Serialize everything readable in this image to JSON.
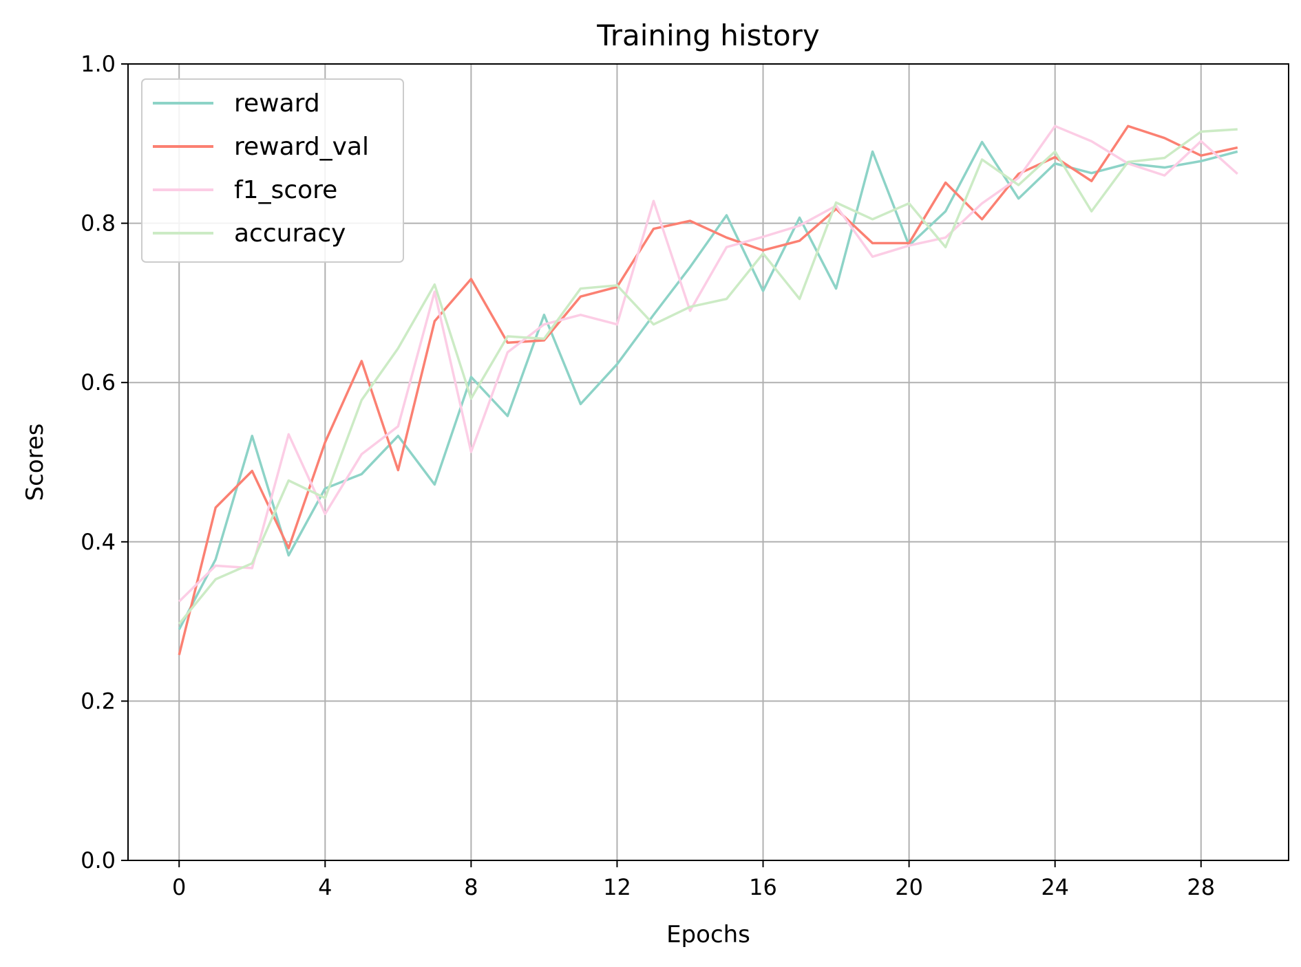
{
  "chart_data": {
    "type": "line",
    "title": "Training history",
    "xlabel": "Epochs",
    "ylabel": "Scores",
    "xlim": [
      -1.4,
      30.4
    ],
    "ylim": [
      0.0,
      1.0
    ],
    "xticks": [
      0,
      4,
      8,
      12,
      16,
      20,
      24,
      28
    ],
    "yticks": [
      "0.0",
      "0.2",
      "0.4",
      "0.6",
      "0.8",
      "1.0"
    ],
    "grid": true,
    "legend_position": "upper-left",
    "x": [
      0,
      1,
      2,
      3,
      4,
      5,
      6,
      7,
      8,
      9,
      10,
      11,
      12,
      13,
      14,
      15,
      16,
      17,
      18,
      19,
      20,
      21,
      22,
      23,
      24,
      25,
      26,
      27,
      28,
      29
    ],
    "series": [
      {
        "name": "reward",
        "color": "#8dd3c7",
        "values": [
          0.29,
          0.378,
          0.533,
          0.383,
          0.467,
          0.485,
          0.533,
          0.472,
          0.607,
          0.558,
          0.685,
          0.573,
          0.623,
          0.685,
          0.745,
          0.81,
          0.715,
          0.807,
          0.718,
          0.89,
          0.772,
          0.815,
          0.902,
          0.831,
          0.875,
          0.863,
          0.875,
          0.87,
          0.878,
          0.89
        ]
      },
      {
        "name": "reward_val",
        "color": "#fb8072",
        "values": [
          0.258,
          0.443,
          0.489,
          0.392,
          0.525,
          0.627,
          0.49,
          0.677,
          0.73,
          0.65,
          0.653,
          0.708,
          0.72,
          0.793,
          0.803,
          0.782,
          0.766,
          0.778,
          0.818,
          0.775,
          0.775,
          0.851,
          0.805,
          0.862,
          0.883,
          0.853,
          0.922,
          0.907,
          0.885,
          0.895
        ]
      },
      {
        "name": "f1_score",
        "color": "#fccde5",
        "values": [
          0.325,
          0.37,
          0.367,
          0.535,
          0.435,
          0.51,
          0.545,
          0.714,
          0.513,
          0.638,
          0.673,
          0.685,
          0.673,
          0.828,
          0.69,
          0.77,
          0.783,
          0.797,
          0.822,
          0.758,
          0.772,
          0.782,
          0.825,
          0.857,
          0.922,
          0.903,
          0.875,
          0.86,
          0.903,
          0.862
        ]
      },
      {
        "name": "accuracy",
        "color": "#ccebc5",
        "values": [
          0.297,
          0.353,
          0.373,
          0.477,
          0.455,
          0.578,
          0.643,
          0.723,
          0.58,
          0.658,
          0.655,
          0.718,
          0.722,
          0.673,
          0.695,
          0.705,
          0.762,
          0.705,
          0.826,
          0.805,
          0.825,
          0.77,
          0.88,
          0.848,
          0.89,
          0.815,
          0.877,
          0.882,
          0.915,
          0.918
        ]
      }
    ]
  }
}
